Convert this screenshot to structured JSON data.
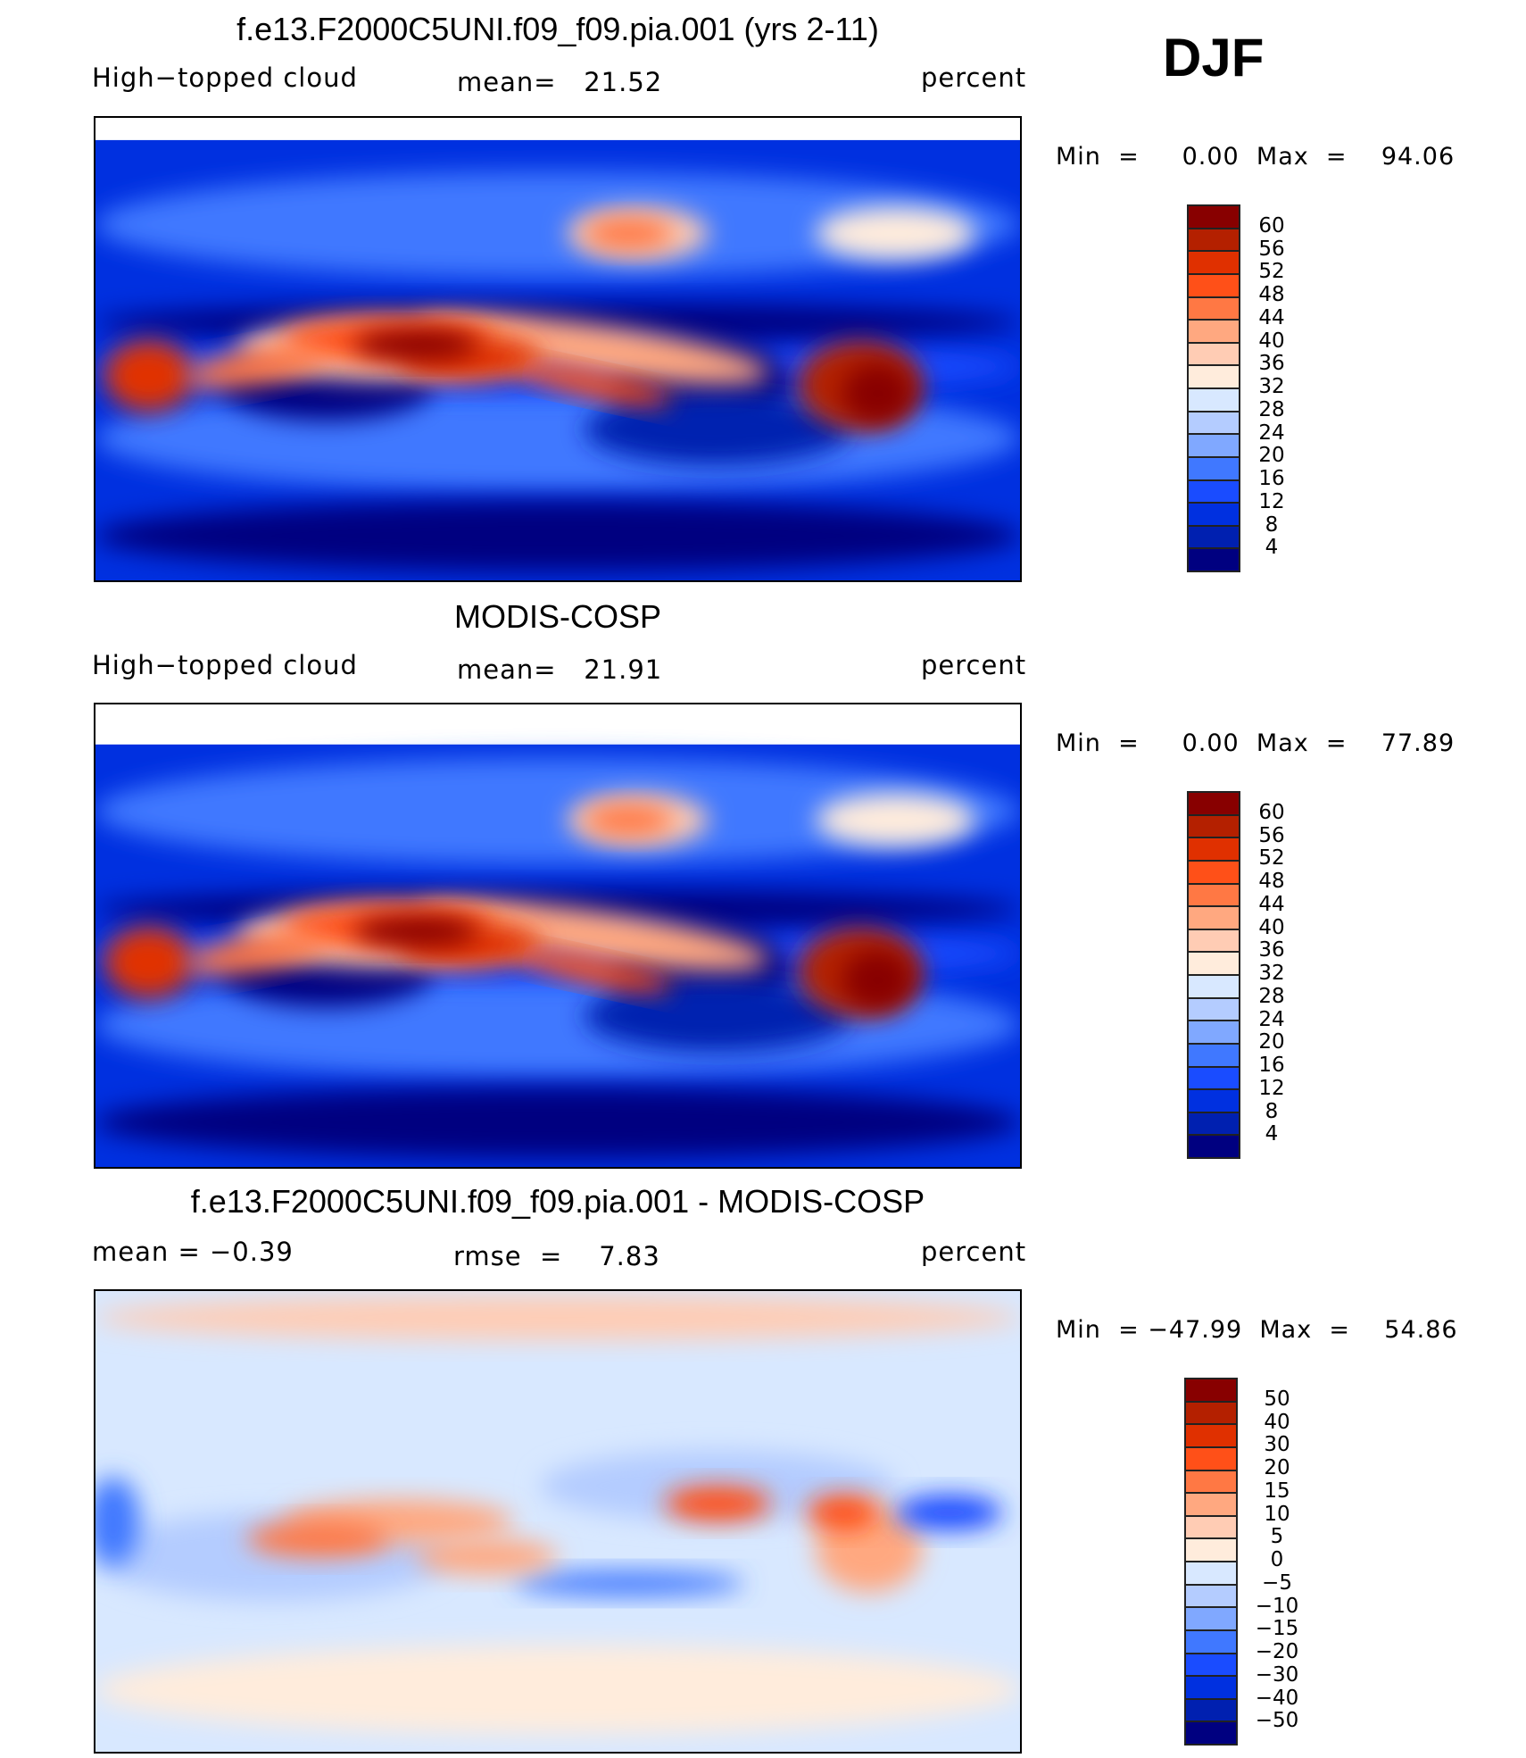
{
  "header": {
    "season": "DJF"
  },
  "panels": [
    {
      "title": "f.e13.F2000C5UNI.f09_f09.pia.001 (yrs 2-11)",
      "left": "High−topped cloud",
      "center": "mean=   21.52",
      "right": "percent",
      "minmax": "Min  =     0.00  Max  =    94.06"
    },
    {
      "title": "MODIS-COSP",
      "left": "High−topped cloud",
      "center": "mean=   21.91",
      "right": "percent",
      "minmax": "Min  =     0.00  Max  =    77.89"
    },
    {
      "title": "f.e13.F2000C5UNI.f09_f09.pia.001 - MODIS-COSP",
      "left": "mean  =   −0.39",
      "center": "rmse  =    7.83",
      "right": "percent",
      "minmax": "Min  = −47.99  Max  =    54.86"
    }
  ],
  "chart_data": [
    {
      "type": "heatmap",
      "title": "f.e13.F2000C5UNI.f09_f09.pia.001 (yrs 2-11)",
      "variable": "High-topped cloud",
      "units": "percent",
      "mean": 21.52,
      "min": 0.0,
      "max": 94.06,
      "levels": [
        "60",
        "56",
        "52",
        "48",
        "44",
        "40",
        "36",
        "32",
        "28",
        "24",
        "20",
        "16",
        "12",
        "8",
        "4"
      ]
    },
    {
      "type": "heatmap",
      "title": "MODIS-COSP",
      "variable": "High-topped cloud",
      "units": "percent",
      "mean": 21.91,
      "min": 0.0,
      "max": 77.89,
      "levels": [
        "60",
        "56",
        "52",
        "48",
        "44",
        "40",
        "36",
        "32",
        "28",
        "24",
        "20",
        "16",
        "12",
        "8",
        "4"
      ]
    },
    {
      "type": "heatmap",
      "title": "f.e13.F2000C5UNI.f09_f09.pia.001 - MODIS-COSP",
      "units": "percent",
      "mean": -0.39,
      "rmse": 7.83,
      "min": -47.99,
      "max": 54.86,
      "levels": [
        "50",
        "40",
        "30",
        "20",
        "15",
        "10",
        "5",
        "0",
        "−5",
        "−10",
        "−15",
        "−20",
        "−30",
        "−40",
        "−50"
      ]
    }
  ],
  "palette": [
    "#880000",
    "#b42000",
    "#e03000",
    "#ff5018",
    "#ff7844",
    "#ffa880",
    "#ffccb4",
    "#ffecdc",
    "#d8e8ff",
    "#b4ccff",
    "#80a8ff",
    "#4078ff",
    "#1a4cff",
    "#0030e0",
    "#0020b0",
    "#000080"
  ]
}
